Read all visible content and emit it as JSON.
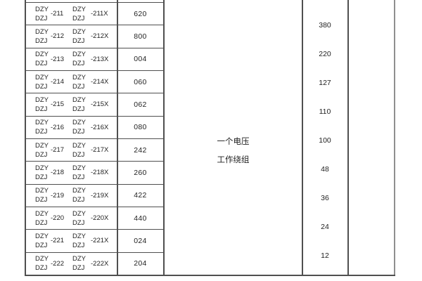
{
  "colors": {
    "border": "#4f4f4f",
    "border_light": "#8f8f8f",
    "text": "#1e1e1e",
    "background": "#ffffff"
  },
  "table": {
    "rows": [
      {
        "l_top": "DZY",
        "l_bot": "DZJ",
        "l_num": "-211",
        "r_top": "DZY",
        "r_bot": "DZJ",
        "r_num": "-211X",
        "code": "620"
      },
      {
        "l_top": "DZY",
        "l_bot": "DZJ",
        "l_num": "-212",
        "r_top": "DZY",
        "r_bot": "DZJ",
        "r_num": "-212X",
        "code": "800"
      },
      {
        "l_top": "DZY",
        "l_bot": "DZJ",
        "l_num": "-213",
        "r_top": "DZY",
        "r_bot": "DZJ",
        "r_num": "-213X",
        "code": "004"
      },
      {
        "l_top": "DZY",
        "l_bot": "DZJ",
        "l_num": "-214",
        "r_top": "DZY",
        "r_bot": "DZJ",
        "r_num": "-214X",
        "code": "060"
      },
      {
        "l_top": "DZY",
        "l_bot": "DZJ",
        "l_num": "-215",
        "r_top": "DZY",
        "r_bot": "DZJ",
        "r_num": "-215X",
        "code": "062"
      },
      {
        "l_top": "DZY",
        "l_bot": "DZJ",
        "l_num": "-216",
        "r_top": "DZY",
        "r_bot": "DZJ",
        "r_num": "-216X",
        "code": "080"
      },
      {
        "l_top": "DZY",
        "l_bot": "DZJ",
        "l_num": "-217",
        "r_top": "DZY",
        "r_bot": "DZJ",
        "r_num": "-217X",
        "code": "242"
      },
      {
        "l_top": "DZY",
        "l_bot": "DZJ",
        "l_num": "-218",
        "r_top": "DZY",
        "r_bot": "DZJ",
        "r_num": "-218X",
        "code": "260"
      },
      {
        "l_top": "DZY",
        "l_bot": "DZJ",
        "l_num": "-219",
        "r_top": "DZY",
        "r_bot": "DZJ",
        "r_num": "-219X",
        "code": "422"
      },
      {
        "l_top": "DZY",
        "l_bot": "DZJ",
        "l_num": "-220",
        "r_top": "DZY",
        "r_bot": "DZJ",
        "r_num": "-220X",
        "code": "440"
      },
      {
        "l_top": "DZY",
        "l_bot": "DZJ",
        "l_num": "-221",
        "r_top": "DZY",
        "r_bot": "DZJ",
        "r_num": "-221X",
        "code": "024"
      },
      {
        "l_top": "DZY",
        "l_bot": "DZJ",
        "l_num": "-222",
        "r_top": "DZY",
        "r_bot": "DZJ",
        "r_num": "-222X",
        "code": "204"
      }
    ],
    "winding_note": {
      "line1": "一个电压",
      "line2": "工作绕组"
    },
    "voltage_values": [
      "380",
      "220",
      "127",
      "110",
      "100",
      "48",
      "36",
      "24",
      "12"
    ]
  }
}
